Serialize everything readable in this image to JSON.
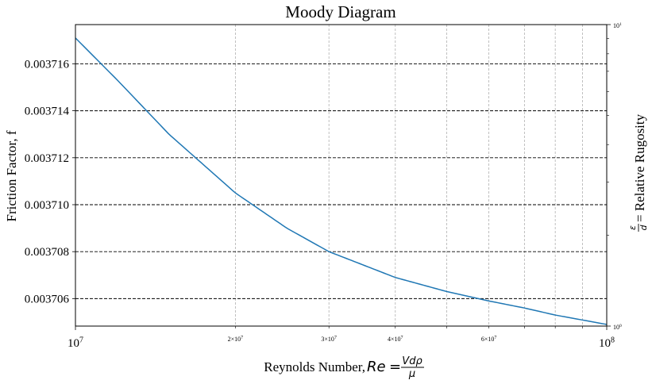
{
  "chart_data": {
    "type": "line",
    "title": "Moody Diagram",
    "xlabel_prefix": "Reynolds Number, ",
    "xlabel_formula": {
      "lhs": "Re",
      "numerator": "Vdρ",
      "denominator": "μ"
    },
    "ylabel": "Friction Factor, f",
    "y2label_fraction": {
      "numerator": "ε",
      "denominator": "d"
    },
    "y2label_text": " = Relative Rugosity",
    "xscale": "log",
    "xlim": [
      10000000,
      100000000
    ],
    "ylim": [
      0.00370483,
      0.00371767
    ],
    "x_major_ticks": [
      {
        "value": 10000000,
        "base": "10",
        "exp": "7"
      },
      {
        "value": 100000000,
        "base": "10",
        "exp": "8"
      }
    ],
    "x_minor_ticks": [
      {
        "value": 20000000,
        "mant": "2",
        "exp": "7",
        "labeled": true
      },
      {
        "value": 30000000,
        "mant": "3",
        "exp": "7",
        "labeled": true
      },
      {
        "value": 40000000,
        "mant": "4",
        "exp": "7",
        "labeled": true
      },
      {
        "value": 50000000,
        "mant": "5",
        "exp": "7",
        "labeled": false
      },
      {
        "value": 60000000,
        "mant": "6",
        "exp": "7",
        "labeled": true
      },
      {
        "value": 70000000,
        "mant": "7",
        "exp": "7",
        "labeled": false
      },
      {
        "value": 80000000,
        "mant": "8",
        "exp": "7",
        "labeled": false
      },
      {
        "value": 90000000,
        "mant": "9",
        "exp": "7",
        "labeled": false
      }
    ],
    "y_ticks": [
      {
        "value": 0.003706,
        "label": "0.003706"
      },
      {
        "value": 0.003708,
        "label": "0.003708"
      },
      {
        "value": 0.00371,
        "label": "0.003710"
      },
      {
        "value": 0.003712,
        "label": "0.003712"
      },
      {
        "value": 0.003714,
        "label": "0.003714"
      },
      {
        "value": 0.003716,
        "label": "0.003716"
      }
    ],
    "y2scale": "log",
    "y2lim": [
      1,
      10
    ],
    "y2_ticks": [
      {
        "value": 1,
        "base": "10",
        "exp": "0"
      },
      {
        "value": 10,
        "base": "10",
        "exp": "1"
      }
    ],
    "grid": {
      "x": "dashed light gray (major and minor)",
      "y": "dashed black"
    },
    "series": [
      {
        "color": "#1f77b4",
        "x": [
          10000000,
          12000000,
          15000000,
          20000000,
          25000000,
          30000000,
          40000000,
          50000000,
          60000000,
          70000000,
          80000000,
          100000000
        ],
        "y": [
          0.0037171,
          0.0037153,
          0.003713,
          0.0037105,
          0.003709,
          0.003708,
          0.0037069,
          0.0037063,
          0.0037059,
          0.0037056,
          0.0037053,
          0.0037049
        ]
      }
    ]
  }
}
